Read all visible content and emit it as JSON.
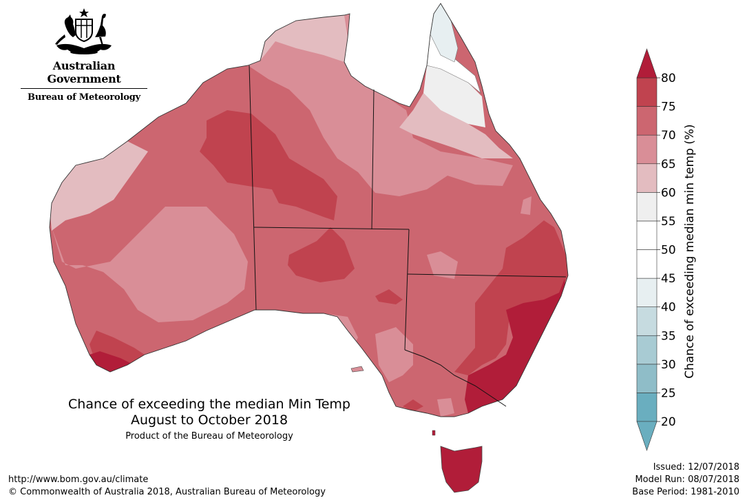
{
  "header": {
    "government": "Australian Government",
    "agency": "Bureau of Meteorology"
  },
  "title": {
    "line1": "Chance of exceeding the median Min Temp",
    "line2": "August to October 2018",
    "product": "Product of the Bureau of Meteorology"
  },
  "footer": {
    "url": "http://www.bom.gov.au/climate",
    "copyright": "© Commonwealth of Australia 2018, Australian Bureau of Meteorology",
    "issued": "Issued: 12/07/2018",
    "model_run": "Model Run: 08/07/2018",
    "base_period": "Base Period: 1981-2010"
  },
  "legend": {
    "label": "Chance of exceeding median min temp (%)",
    "ticks": [
      "20",
      "25",
      "30",
      "35",
      "40",
      "45",
      "50",
      "55",
      "60",
      "65",
      "70",
      "75",
      "80"
    ],
    "colors": [
      "#6aaebf",
      "#8fbdc8",
      "#a8cbd3",
      "#c6dbe0",
      "#e7eff1",
      "#ffffff",
      "#ffffff",
      "#efefef",
      "#e3bcc0",
      "#d98e97",
      "#cc6670",
      "#c0434f",
      "#b11d39"
    ]
  },
  "map_colors": {
    "c60": "#e3bcc0",
    "c65": "#d98e97",
    "c70": "#cc6670",
    "c75": "#c0434f",
    "c80": "#b11d39",
    "c55": "#efefef",
    "c50": "#ffffff",
    "c45": "#e7eff1"
  }
}
